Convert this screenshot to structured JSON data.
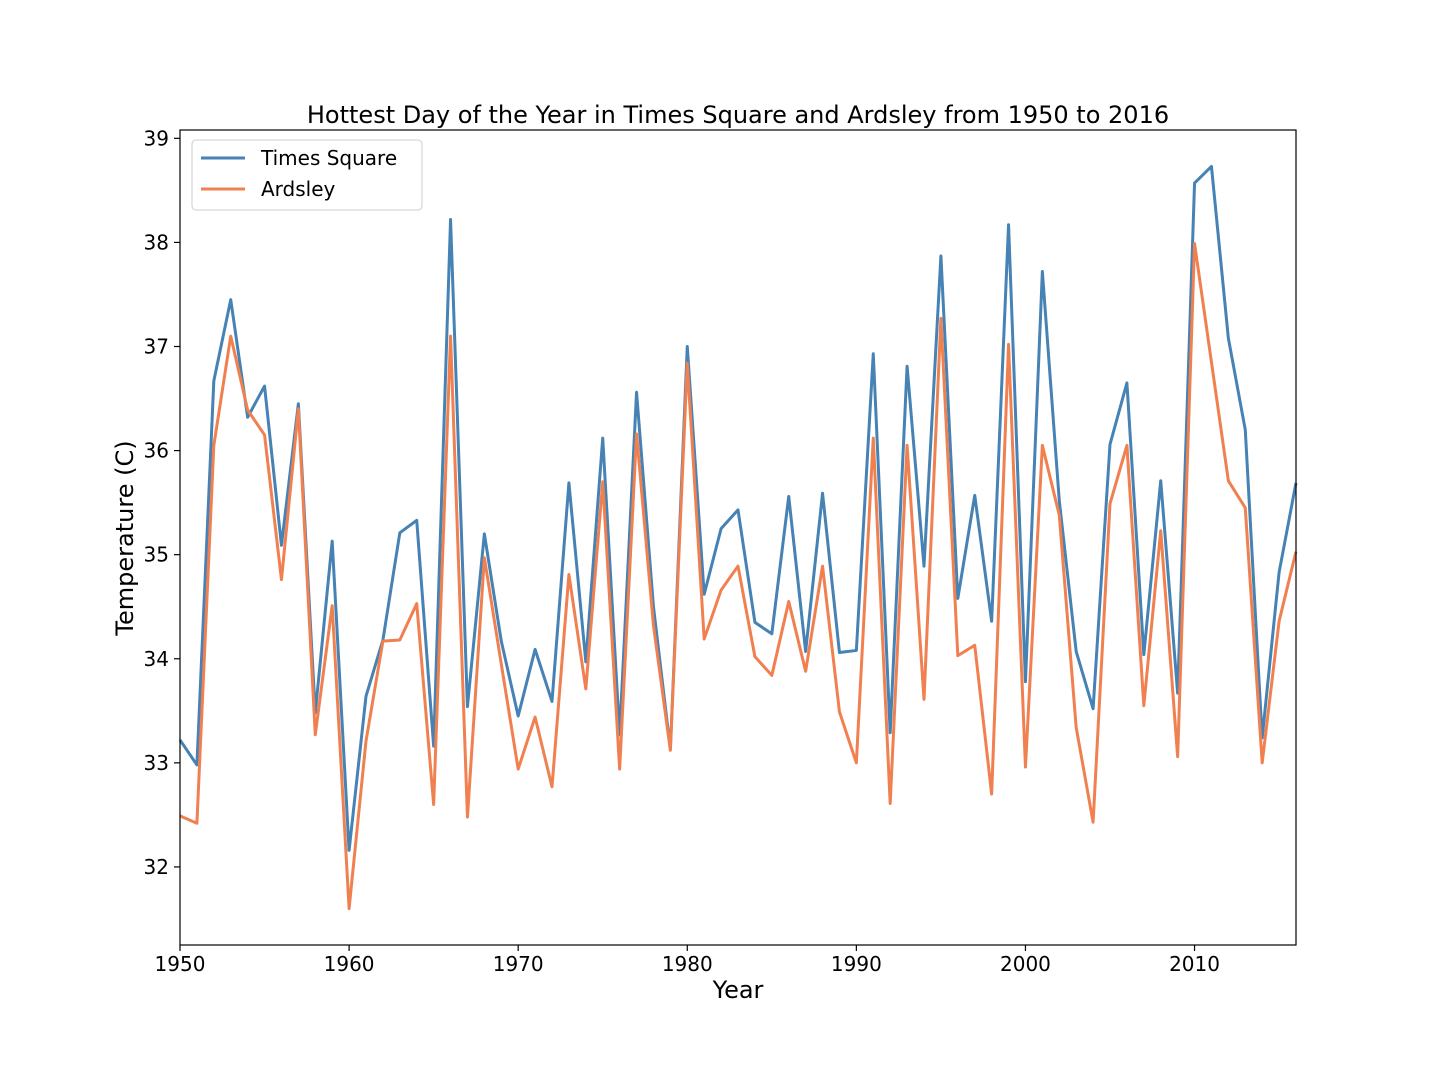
{
  "chart_data": {
    "type": "line",
    "title": "Hottest Day of the Year in Times Square and Ardsley from 1950 to 2016",
    "xlabel": "Year",
    "ylabel": "Temperature (C)",
    "xlim": [
      1950,
      2016
    ],
    "ylim": [
      31.25,
      39.08
    ],
    "x_ticks": [
      1950,
      1960,
      1970,
      1980,
      1990,
      2000,
      2010
    ],
    "y_ticks": [
      32,
      33,
      34,
      35,
      36,
      37,
      38,
      39
    ],
    "grid": false,
    "legend_position": "top-left",
    "x": [
      1950,
      1951,
      1952,
      1953,
      1954,
      1955,
      1956,
      1957,
      1958,
      1959,
      1960,
      1961,
      1962,
      1963,
      1964,
      1965,
      1966,
      1967,
      1968,
      1969,
      1970,
      1971,
      1972,
      1973,
      1974,
      1975,
      1976,
      1977,
      1978,
      1979,
      1980,
      1981,
      1982,
      1983,
      1984,
      1985,
      1986,
      1987,
      1988,
      1989,
      1990,
      1991,
      1992,
      1993,
      1994,
      1995,
      1996,
      1997,
      1998,
      1999,
      2000,
      2001,
      2002,
      2003,
      2004,
      2005,
      2006,
      2007,
      2008,
      2009,
      2010,
      2011,
      2012,
      2013,
      2014,
      2015,
      2016
    ],
    "series": [
      {
        "name": "Times Square",
        "color": "#4682b4",
        "values": [
          33.22,
          32.98,
          36.67,
          37.45,
          36.32,
          36.62,
          35.09,
          36.45,
          33.48,
          35.13,
          32.16,
          33.64,
          34.18,
          35.21,
          35.33,
          33.16,
          38.22,
          33.54,
          35.2,
          34.17,
          33.45,
          34.09,
          33.59,
          35.69,
          33.97,
          36.12,
          33.27,
          36.56,
          34.5,
          33.13,
          37.0,
          34.62,
          35.25,
          35.43,
          34.35,
          34.24,
          35.56,
          34.07,
          35.59,
          34.06,
          34.08,
          36.93,
          33.29,
          36.81,
          34.89,
          37.87,
          34.58,
          35.57,
          34.36,
          38.17,
          33.78,
          37.72,
          35.52,
          34.07,
          33.52,
          36.06,
          36.65,
          34.04,
          35.71,
          33.67,
          38.57,
          38.73,
          37.08,
          36.2,
          33.24,
          34.83,
          35.69
        ]
      },
      {
        "name": "Ardsley",
        "color": "#f08050",
        "values": [
          32.49,
          32.42,
          36.05,
          37.1,
          36.39,
          36.15,
          34.76,
          36.4,
          33.27,
          34.51,
          31.6,
          33.21,
          34.17,
          34.18,
          34.53,
          32.6,
          37.1,
          32.48,
          34.97,
          33.95,
          32.94,
          33.44,
          32.77,
          34.81,
          33.71,
          35.7,
          32.94,
          36.16,
          34.32,
          33.12,
          36.84,
          34.19,
          34.66,
          34.89,
          34.02,
          33.84,
          34.55,
          33.88,
          34.89,
          33.49,
          33.0,
          36.12,
          32.61,
          36.05,
          33.61,
          37.27,
          34.03,
          34.13,
          32.7,
          37.02,
          32.96,
          36.05,
          35.38,
          33.34,
          32.43,
          35.49,
          36.05,
          33.55,
          35.23,
          33.06,
          37.99,
          36.85,
          35.71,
          35.45,
          33.0,
          34.36,
          35.03
        ]
      }
    ]
  }
}
